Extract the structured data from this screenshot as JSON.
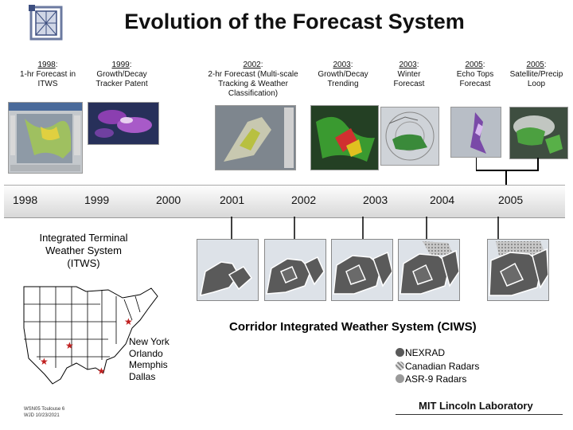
{
  "title": "Evolution of the Forecast System",
  "milestones": [
    {
      "year": "1998",
      "text": "1-hr Forecast in ITWS"
    },
    {
      "year": "1999",
      "text": "Growth/Decay Tracker Patent"
    },
    {
      "year": "2002",
      "text": "2-hr Forecast (Multi-scale Tracking & Weather Classification)"
    },
    {
      "year": "2003",
      "text": "Growth/Decay Trending"
    },
    {
      "year": "2003",
      "text": "Winter Forecast"
    },
    {
      "year": "2005",
      "text": "Echo Tops Forecast"
    },
    {
      "year": "2005",
      "text": "Satellite/Precip Loop"
    }
  ],
  "timeline_years": [
    "1998",
    "1999",
    "2000",
    "2001",
    "2002",
    "2003",
    "2004",
    "2005"
  ],
  "itws_label": "Integrated Terminal Weather System (ITWS)",
  "ciws_label": "Corridor Integrated Weather System (CIWS)",
  "cities": [
    "New York",
    "Orlando",
    "Memphis",
    "Dallas"
  ],
  "legend": [
    {
      "label": "NEXRAD",
      "color": "#5a5a5a"
    },
    {
      "label": "Canadian Radars",
      "color": "#b8b8b8"
    },
    {
      "label": "ASR-9 Radars",
      "color": "#9a9a9a"
    }
  ],
  "org": "MIT Lincoln Laboratory",
  "footer": [
    "WSN05 Toulouse 6",
    "WJD 10/23/2021"
  ]
}
